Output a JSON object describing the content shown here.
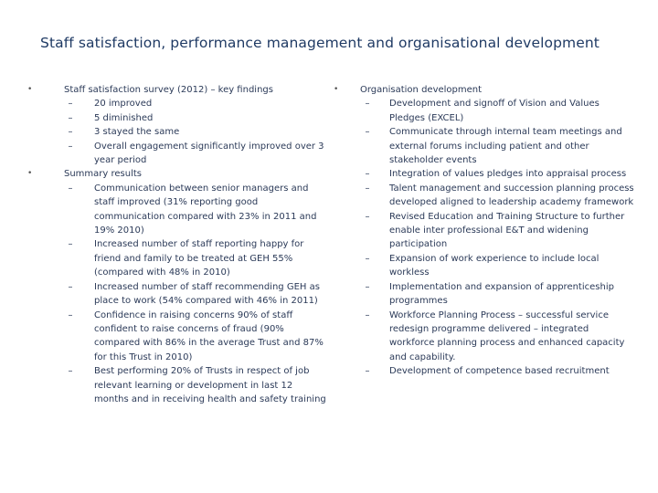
{
  "title": "Staff satisfaction, performance management and organisational development",
  "left": [
    {
      "heading": "Staff satisfaction survey (2012) – key findings",
      "items": [
        "20 improved",
        "5 diminished",
        "3 stayed the same",
        "Overall engagement significantly improved over 3 year period"
      ]
    },
    {
      "heading": "Summary results",
      "items": [
        "Communication between senior managers and staff improved (31% reporting good communication compared with 23% in 2011 and 19% 2010)",
        "Increased number of staff reporting happy for friend and family to be treated at GEH 55% (compared with 48% in 2010)",
        "Increased number of staff recommending GEH as place to work (54% compared with 46% in 2011)",
        "Confidence in raising concerns 90% of staff confident to raise concerns of fraud (90% compared with 86% in the average Trust and 87% for this Trust in 2010)",
        "Best performing 20% of Trusts in respect of job relevant learning or development in last 12 months and in receiving health and safety training"
      ]
    }
  ],
  "right": [
    {
      "heading": "Organisation development",
      "items": [
        "Development and signoff of Vision and Values Pledges (EXCEL)",
        "Communicate through internal team meetings and external forums including patient and other stakeholder events",
        "Integration of values pledges into appraisal process",
        "Talent management and succession planning process developed aligned to leadership academy framework",
        "Revised Education and Training Structure to further enable inter professional E&T and widening participation",
        "Expansion of work experience to include local workless",
        "Implementation and expansion of apprenticeship programmes",
        "Workforce Planning Process – successful service redesign programme delivered – integrated workforce planning process and enhanced capacity and capability.",
        "Development of competence based recruitment"
      ]
    }
  ],
  "bullet_char": "•",
  "dash_char": "–"
}
